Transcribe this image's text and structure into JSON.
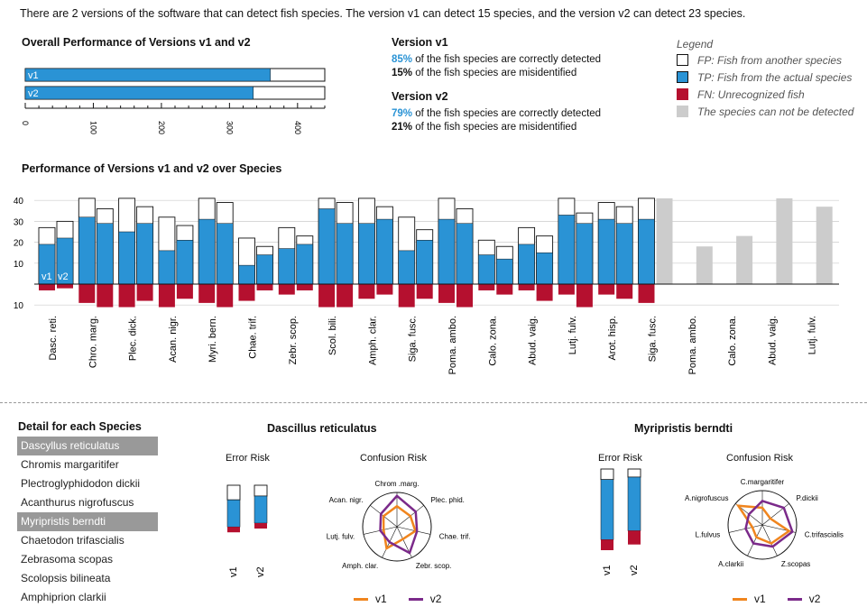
{
  "intro": "There are 2 versions of the software that can detect fish species. The version v1 can detect 15 species, and the version v2 can detect 23 species.",
  "overall": {
    "title": "Overall Performance of Versions v1 and v2",
    "bars": [
      {
        "label": "v1",
        "value": 360
      },
      {
        "label": "v2",
        "value": 335
      }
    ],
    "total": 440,
    "ticks": [
      "0",
      "100",
      "200",
      "300",
      "400"
    ]
  },
  "version_v1": {
    "title": "Version v1",
    "correct_pct": "85%",
    "correct_text": "of the fish species are correctly detected",
    "mis_pct": "15%",
    "mis_text": "of the fish species are misidentified"
  },
  "version_v2": {
    "title": "Version v2",
    "correct_pct": "79%",
    "correct_text": "of the fish species are correctly detected",
    "mis_pct": "21%",
    "mis_text": "of the fish species are misidentified"
  },
  "legend": {
    "title": "Legend",
    "items": [
      {
        "label": "FP: Fish from another species",
        "color": "#ffffff"
      },
      {
        "label": "TP: Fish from the actual species",
        "color": "#2a93d5"
      },
      {
        "label": "FN: Unrecognized fish",
        "color": "#b5102f"
      },
      {
        "label": "The species can not be detected",
        "color": "#cccccc"
      }
    ]
  },
  "colors": {
    "tp": "#2a93d5",
    "fn": "#b5102f",
    "fp": "#ffffff",
    "nd": "#cccccc",
    "v1": "#f0851e",
    "v2": "#7b2a8a"
  },
  "chart_data": [
    {
      "type": "bar",
      "title": "Performance of Versions v1 and v2 over Species",
      "yticks_up": [
        "10",
        "20",
        "30",
        "40"
      ],
      "yticks_down": [
        "10"
      ],
      "labels_in_chart": [
        "v1",
        "v2"
      ],
      "categories": [
        "Dasc. reti.",
        "Chro. marg.",
        "Plec. dick.",
        "Acan. nigr.",
        "Myri. bern.",
        "Chae. trif.",
        "Zebr. scop.",
        "Scol. bili.",
        "Amph. clar.",
        "Siga. fusc.",
        "Poma. ambo.",
        "Calo. zona.",
        "Abud. vaig.",
        "Lutj. fulv.",
        "Arot. hisp.",
        "Siga. fusc.",
        "Poma. ambo.",
        "Calo. zona.",
        "Abud. vaig.",
        "Lutj. fulv."
      ],
      "series": [
        {
          "name": "v1",
          "tp": [
            19,
            32,
            25,
            16,
            31,
            9,
            17,
            36,
            29,
            16,
            31,
            14,
            19,
            33,
            31,
            31,
            null,
            null,
            null,
            null
          ],
          "fp": [
            8,
            9,
            16,
            16,
            10,
            13,
            10,
            5,
            12,
            16,
            10,
            7,
            8,
            8,
            8,
            10,
            null,
            null,
            null,
            null
          ],
          "fn": [
            3,
            9,
            11,
            11,
            9,
            8,
            5,
            11,
            7,
            11,
            9,
            3,
            3,
            5,
            5,
            9,
            null,
            null,
            null,
            null
          ],
          "not_detected": [
            null,
            null,
            null,
            null,
            null,
            null,
            null,
            null,
            null,
            null,
            null,
            null,
            null,
            null,
            null,
            null,
            null,
            null,
            null,
            null
          ]
        },
        {
          "name": "v2",
          "tp": [
            22,
            29,
            29,
            21,
            29,
            14,
            19,
            29,
            31,
            21,
            29,
            12,
            15,
            29,
            29,
            null,
            14,
            19,
            36,
            31
          ],
          "fp": [
            8,
            7,
            8,
            7,
            10,
            4,
            4,
            10,
            6,
            5,
            7,
            6,
            8,
            5,
            8,
            null,
            6,
            8,
            5,
            8
          ],
          "fn": [
            2,
            11,
            8,
            7,
            11,
            3,
            3,
            11,
            5,
            7,
            11,
            5,
            8,
            11,
            7,
            null,
            3,
            3,
            4,
            5
          ],
          "not_detected": [
            null,
            null,
            null,
            null,
            null,
            null,
            null,
            null,
            null,
            null,
            null,
            null,
            null,
            null,
            null,
            41,
            18,
            23,
            41,
            37
          ]
        }
      ]
    },
    {
      "type": "radar",
      "title": "Dascillus reticulatus",
      "axes": [
        "Chrom .marg.",
        "Plec. phid.",
        "Chae. trif.",
        "Zebr. scop.",
        "Amph. clar.",
        "Lutj. fulv.",
        "Acan. nigr."
      ],
      "series": [
        {
          "name": "v1",
          "values": [
            0.6,
            0.5,
            0.55,
            0.4,
            0.7,
            0.4,
            0.5
          ]
        },
        {
          "name": "v2",
          "values": [
            0.9,
            0.7,
            0.6,
            0.85,
            0.5,
            0.5,
            0.6
          ]
        }
      ]
    },
    {
      "type": "radar",
      "title": "Myripristis berndti",
      "axes": [
        "C.margaritifer",
        "P.dickii",
        "C.trifascialis",
        "Z.scopas",
        "A.clarkii",
        "L.fulvus",
        "A.nigrofuscus"
      ],
      "series": [
        {
          "name": "v1",
          "values": [
            0.5,
            0.3,
            0.8,
            0.6,
            0.4,
            0.3,
            0.9
          ]
        },
        {
          "name": "v2",
          "values": [
            0.7,
            0.8,
            0.9,
            0.7,
            0.6,
            0.5,
            0.5
          ]
        }
      ]
    }
  ],
  "detail": {
    "title": "Detail for each Species",
    "species": [
      "Dascyllus reticulatus",
      "Chromis margaritifer",
      "Plectroglyphidodon dickii",
      "Acanthurus nigrofuscus",
      "Myripristis berndti",
      "Chaetodon trifascialis",
      "Zebrasoma scopas",
      "Scolopsis bilineata",
      "Amphiprion clarkii"
    ],
    "selected": [
      0,
      4
    ]
  },
  "panel1": {
    "title": "Dascillus reticulatus",
    "error_title": "Error Risk",
    "confusion_title": "Confusion Risk",
    "error": [
      {
        "name": "v1",
        "tp": 0.5,
        "fp": 0.27,
        "fn": 0.1
      },
      {
        "name": "v2",
        "tp": 0.5,
        "fp": 0.2,
        "fn": 0.1
      }
    ]
  },
  "panel2": {
    "title": "Myripristis berndti",
    "error_title": "Error Risk",
    "confusion_title": "Confusion Risk",
    "error": [
      {
        "name": "v1",
        "tp": 0.74,
        "fp": 0.13,
        "fn": 0.13
      },
      {
        "name": "v2",
        "tp": 0.66,
        "fp": 0.1,
        "fn": 0.17
      }
    ]
  },
  "series_legend": [
    {
      "name": "v1",
      "color": "#f0851e"
    },
    {
      "name": "v2",
      "color": "#7b2a8a"
    }
  ]
}
